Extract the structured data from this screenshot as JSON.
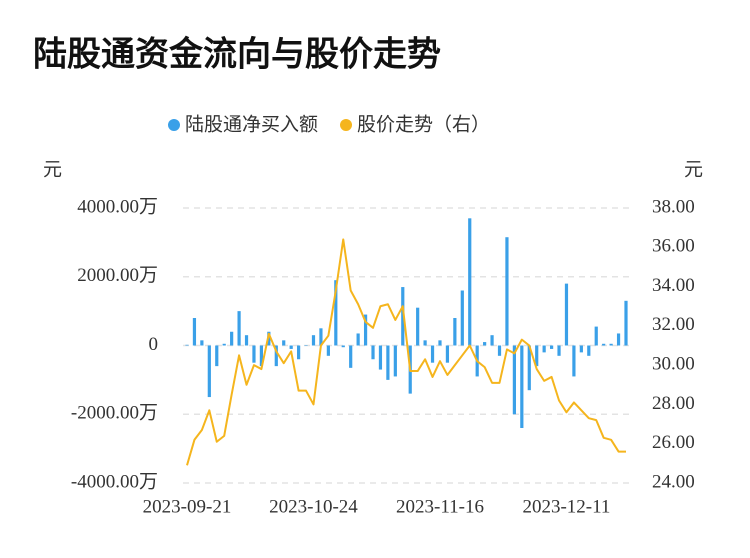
{
  "chart_data": {
    "type": "combo",
    "title": "陆股通资金流向与股价走势",
    "y_label": "元",
    "y2_label": "元",
    "categories": [
      "2023-09-21",
      null,
      null,
      null,
      null,
      null,
      null,
      null,
      null,
      null,
      null,
      null,
      null,
      null,
      null,
      null,
      null,
      "2023-10-24",
      null,
      null,
      null,
      null,
      null,
      null,
      null,
      null,
      null,
      null,
      null,
      null,
      null,
      null,
      null,
      null,
      "2023-11-16",
      null,
      null,
      null,
      null,
      null,
      null,
      null,
      null,
      null,
      null,
      null,
      null,
      null,
      null,
      null,
      null,
      "2023-12-11",
      null,
      null,
      null,
      null,
      null,
      null,
      null,
      null
    ],
    "series": [
      {
        "name": "陆股通净买入额",
        "type": "bar",
        "color": "#3aa0e8",
        "values": [
          20,
          800,
          150,
          -1500,
          -600,
          50,
          400,
          1000,
          300,
          -500,
          -600,
          400,
          -600,
          150,
          -100,
          -400,
          0,
          300,
          500,
          -300,
          1900,
          -50,
          -650,
          350,
          900,
          -400,
          -700,
          -1000,
          -900,
          1700,
          -1400,
          1100,
          150,
          -500,
          150,
          -500,
          800,
          1600,
          3700,
          -900,
          100,
          300,
          -300,
          3150,
          -2000,
          -2400,
          -1300,
          -600,
          -200,
          -100,
          -300,
          1800,
          -900,
          -200,
          -300,
          550,
          50,
          50,
          350,
          1300
        ]
      },
      {
        "name": "股价走势（右）",
        "type": "line",
        "color": "#f5b51d",
        "axis": "y2",
        "values": [
          24.9,
          26.2,
          26.7,
          27.7,
          26.1,
          26.4,
          28.5,
          30.5,
          29.0,
          30.0,
          29.8,
          31.6,
          30.7,
          30.1,
          30.7,
          28.7,
          28.7,
          28.0,
          31.0,
          31.5,
          33.8,
          36.4,
          33.8,
          33.1,
          32.2,
          31.9,
          33.0,
          33.1,
          32.3,
          33.0,
          29.7,
          29.7,
          30.3,
          29.4,
          30.2,
          29.5,
          30.0,
          30.5,
          31.0,
          30.2,
          29.9,
          29.1,
          29.1,
          30.8,
          30.6,
          31.3,
          31.0,
          29.8,
          29.2,
          29.4,
          28.2,
          27.6,
          28.1,
          27.7,
          27.3,
          27.2,
          26.3,
          26.2,
          25.6,
          25.6
        ]
      }
    ],
    "ylim": [
      -4000,
      4000
    ],
    "yticks": [
      {
        "value": 4000,
        "label": "4000.00万"
      },
      {
        "value": 2000,
        "label": "2000.00万"
      },
      0,
      {
        "value": -2000,
        "label": "-2000.00万"
      },
      {
        "value": -4000,
        "label": "-4000.00万"
      }
    ],
    "y2lim": [
      24,
      38
    ],
    "y2ticks": [
      {
        "value": 38,
        "label": "38.00"
      },
      {
        "value": 36,
        "label": "36.00"
      },
      {
        "value": 34,
        "label": "34.00"
      },
      {
        "value": 32,
        "label": "32.00"
      },
      {
        "value": 30,
        "label": "30.00"
      },
      {
        "value": 28,
        "label": "28.00"
      },
      {
        "value": 26,
        "label": "26.00"
      },
      {
        "value": 24,
        "label": "24.00"
      }
    ],
    "grid": true
  }
}
